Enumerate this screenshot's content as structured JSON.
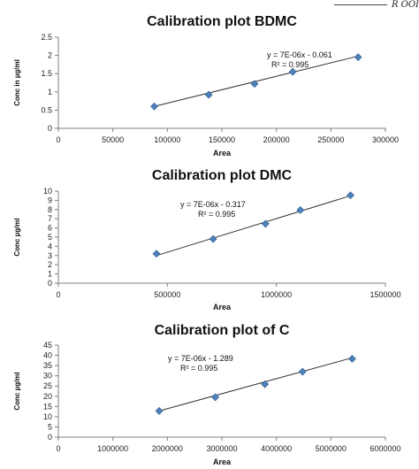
{
  "corner_text": "R OOI",
  "chart_data": [
    {
      "type": "scatter",
      "title": "Calibration plot BDMC",
      "xlabel": "Area",
      "ylabel": "Conc in µg/ml",
      "xlim": [
        0,
        300000
      ],
      "ylim": [
        0,
        2.5
      ],
      "xticks": [
        "0",
        "50000",
        "100000",
        "150000",
        "200000",
        "250000",
        "300000"
      ],
      "yticks": [
        "0",
        "0.5",
        "1",
        "1.5",
        "2",
        "2.5"
      ],
      "x": [
        88000,
        138000,
        180000,
        215000,
        275000
      ],
      "y": [
        0.6,
        0.92,
        1.22,
        1.55,
        1.95
      ],
      "trendline": {
        "x": [
          88000,
          275000
        ],
        "y": [
          0.6,
          1.98
        ]
      },
      "equation": "y = 7E-06x - 0.061",
      "r2": "R² = 0.995",
      "marker_color": "#4f81bd",
      "grid": false
    },
    {
      "type": "scatter",
      "title": "Calibration plot DMC",
      "xlabel": "Area",
      "ylabel": "Conc µg/ml",
      "xlim": [
        0,
        1500000
      ],
      "ylim": [
        0,
        10
      ],
      "xticks": [
        "0",
        "500000",
        "1000000",
        "1500000"
      ],
      "yticks": [
        "0",
        "1",
        "2",
        "3",
        "4",
        "5",
        "6",
        "7",
        "8",
        "9",
        "10"
      ],
      "x": [
        450000,
        710000,
        950000,
        1110000,
        1340000
      ],
      "y": [
        3.2,
        4.8,
        6.45,
        7.95,
        9.55
      ],
      "trendline": {
        "x": [
          450000,
          1340000
        ],
        "y": [
          3.0,
          9.5
        ]
      },
      "equation": "y = 7E-06x - 0.317",
      "r2": "R² = 0.995",
      "marker_color": "#4f81bd",
      "grid": false
    },
    {
      "type": "scatter",
      "title": "Calibration plot of C",
      "xlabel": "Area",
      "ylabel": "Conc µg/ml",
      "xlim": [
        0,
        6000000
      ],
      "ylim": [
        0,
        45
      ],
      "xticks": [
        "0",
        "1000000",
        "2000000",
        "3000000",
        "4000000",
        "5000000",
        "6000000"
      ],
      "yticks": [
        "0",
        "5",
        "10",
        "15",
        "20",
        "25",
        "30",
        "35",
        "40",
        "45"
      ],
      "x": [
        1850000,
        2880000,
        3790000,
        4480000,
        5390000
      ],
      "y": [
        12.8,
        19.5,
        25.9,
        32.0,
        38.3
      ],
      "trendline": {
        "x": [
          1850000,
          5390000
        ],
        "y": [
          12.8,
          38.8
        ]
      },
      "equation": "y = 7E-06x - 1.289",
      "r2": "R² = 0.995",
      "marker_color": "#4f81bd",
      "grid": false
    }
  ]
}
